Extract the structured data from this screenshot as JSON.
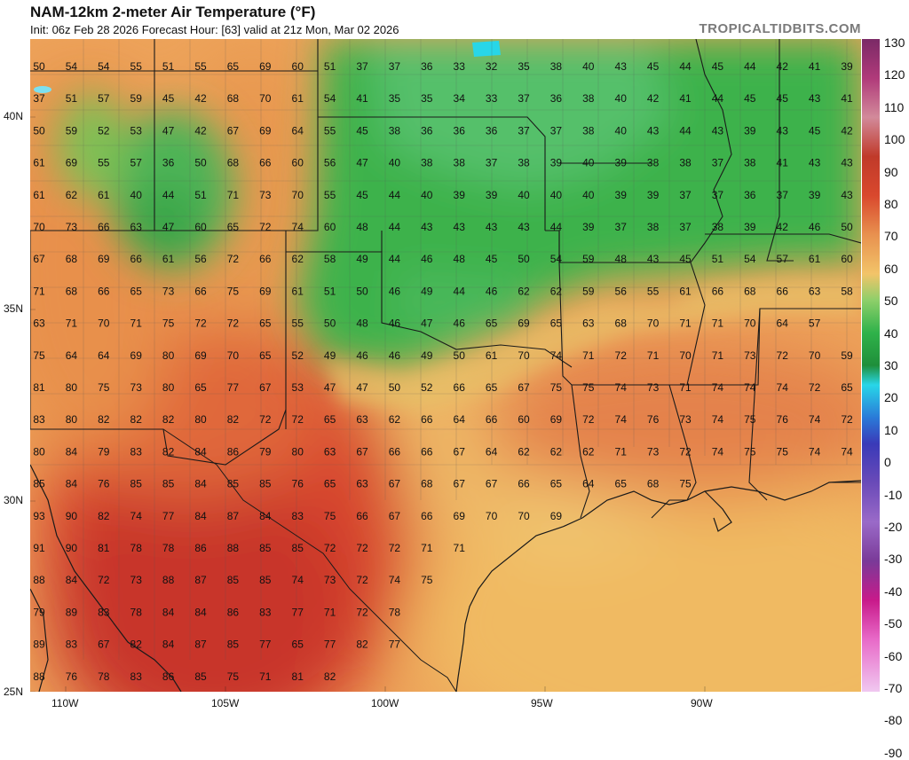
{
  "header": {
    "title": "NAM-12km 2-meter Air Temperature (°F)",
    "subtitle": "Init: 06z Feb 28 2026   Forecast Hour: [63]   valid at 21z Mon, Mar 02 2026",
    "brand": "TROPICALTIDBITS.COM"
  },
  "axes": {
    "lat_labels": [
      "40N",
      "35N",
      "30N",
      "25N"
    ],
    "lon_labels": [
      "110W",
      "105W",
      "100W",
      "95W",
      "90W"
    ]
  },
  "colorbar": {
    "labels": [
      "130",
      "120",
      "110",
      "100",
      "90",
      "80",
      "70",
      "60",
      "50",
      "40",
      "30",
      "20",
      "10",
      "0",
      "-10",
      "-20",
      "-30",
      "-40",
      "-50",
      "-60",
      "-70",
      "-80",
      "-90"
    ],
    "colors": {
      "green_dark": "#2fb24a",
      "green_light": "#66c873",
      "yellow": "#f2c469",
      "orange": "#e8914f",
      "red": "#d9482d",
      "dark_red": "#b0262a",
      "magenta": "#b23a6a",
      "cyan": "#28d6e8"
    }
  },
  "stations": {
    "rows": [
      [
        "50",
        "54",
        "54",
        "55",
        "51",
        "55",
        "65",
        "69",
        "60",
        "51",
        "37",
        "37",
        "36",
        "33",
        "32",
        "35",
        "38",
        "40",
        "43",
        "45",
        "44",
        "45",
        "44",
        "42",
        "41",
        "39"
      ],
      [
        "37",
        "51",
        "57",
        "59",
        "45",
        "42",
        "68",
        "70",
        "61",
        "54",
        "41",
        "35",
        "35",
        "34",
        "33",
        "37",
        "36",
        "38",
        "40",
        "42",
        "41",
        "44",
        "45",
        "45",
        "43",
        "41"
      ],
      [
        "50",
        "59",
        "52",
        "53",
        "47",
        "42",
        "67",
        "69",
        "64",
        "55",
        "45",
        "38",
        "36",
        "36",
        "36",
        "37",
        "37",
        "38",
        "40",
        "43",
        "44",
        "43",
        "39",
        "43",
        "45",
        "42"
      ],
      [
        "61",
        "69",
        "55",
        "57",
        "36",
        "50",
        "68",
        "66",
        "60",
        "56",
        "47",
        "40",
        "38",
        "38",
        "37",
        "38",
        "39",
        "40",
        "39",
        "38",
        "38",
        "37",
        "38",
        "41",
        "43",
        "43"
      ],
      [
        "61",
        "62",
        "61",
        "40",
        "44",
        "51",
        "71",
        "73",
        "70",
        "55",
        "45",
        "44",
        "40",
        "39",
        "39",
        "40",
        "40",
        "40",
        "39",
        "39",
        "37",
        "37",
        "36",
        "37",
        "39",
        "43"
      ],
      [
        "70",
        "73",
        "66",
        "63",
        "47",
        "60",
        "65",
        "72",
        "74",
        "60",
        "48",
        "44",
        "43",
        "43",
        "43",
        "43",
        "44",
        "39",
        "37",
        "38",
        "37",
        "38",
        "39",
        "42",
        "46",
        "50"
      ],
      [
        "67",
        "68",
        "69",
        "66",
        "61",
        "56",
        "72",
        "66",
        "62",
        "58",
        "49",
        "44",
        "46",
        "48",
        "45",
        "50",
        "54",
        "59",
        "48",
        "43",
        "45",
        "51",
        "54",
        "57",
        "61",
        "60"
      ],
      [
        "71",
        "68",
        "66",
        "65",
        "73",
        "66",
        "75",
        "69",
        "61",
        "51",
        "50",
        "46",
        "49",
        "44",
        "46",
        "62",
        "62",
        "59",
        "56",
        "55",
        "61",
        "66",
        "68",
        "66",
        "63",
        "58"
      ],
      [
        "63",
        "71",
        "70",
        "71",
        "75",
        "72",
        "72",
        "65",
        "55",
        "50",
        "48",
        "46",
        "47",
        "46",
        "65",
        "69",
        "65",
        "63",
        "68",
        "70",
        "71",
        "71",
        "70",
        "64",
        "57"
      ],
      [
        "75",
        "64",
        "64",
        "69",
        "80",
        "69",
        "70",
        "65",
        "52",
        "49",
        "46",
        "46",
        "49",
        "50",
        "61",
        "70",
        "74",
        "71",
        "72",
        "71",
        "70",
        "71",
        "73",
        "72",
        "70",
        "59"
      ],
      [
        "81",
        "80",
        "75",
        "73",
        "80",
        "65",
        "77",
        "67",
        "53",
        "47",
        "47",
        "50",
        "52",
        "66",
        "65",
        "67",
        "75",
        "75",
        "74",
        "73",
        "71",
        "74",
        "74",
        "74",
        "72",
        "65"
      ],
      [
        "83",
        "80",
        "82",
        "82",
        "82",
        "80",
        "82",
        "72",
        "72",
        "65",
        "63",
        "62",
        "66",
        "64",
        "66",
        "60",
        "69",
        "72",
        "74",
        "76",
        "73",
        "74",
        "75",
        "76",
        "74",
        "72"
      ],
      [
        "80",
        "84",
        "79",
        "83",
        "82",
        "84",
        "86",
        "79",
        "80",
        "63",
        "67",
        "66",
        "66",
        "67",
        "64",
        "62",
        "62",
        "62",
        "71",
        "73",
        "72",
        "74",
        "75",
        "75",
        "74",
        "74"
      ],
      [
        "85",
        "84",
        "76",
        "85",
        "85",
        "84",
        "85",
        "85",
        "76",
        "65",
        "63",
        "67",
        "68",
        "67",
        "67",
        "66",
        "65",
        "64",
        "65",
        "68",
        "75"
      ],
      [
        "93",
        "90",
        "82",
        "74",
        "77",
        "84",
        "87",
        "84",
        "83",
        "75",
        "66",
        "67",
        "66",
        "69",
        "70",
        "70",
        "69"
      ],
      [
        "91",
        "90",
        "81",
        "78",
        "78",
        "86",
        "88",
        "85",
        "85",
        "72",
        "72",
        "72",
        "71",
        "71"
      ],
      [
        "88",
        "84",
        "72",
        "73",
        "88",
        "87",
        "85",
        "85",
        "74",
        "73",
        "72",
        "74",
        "75"
      ],
      [
        "79",
        "89",
        "83",
        "78",
        "84",
        "84",
        "86",
        "83",
        "77",
        "71",
        "72",
        "78"
      ],
      [
        "89",
        "83",
        "67",
        "82",
        "84",
        "87",
        "85",
        "77",
        "65",
        "77",
        "82",
        "77"
      ],
      [
        "88",
        "76",
        "78",
        "83",
        "86",
        "85",
        "75",
        "71",
        "81",
        "82"
      ]
    ]
  }
}
